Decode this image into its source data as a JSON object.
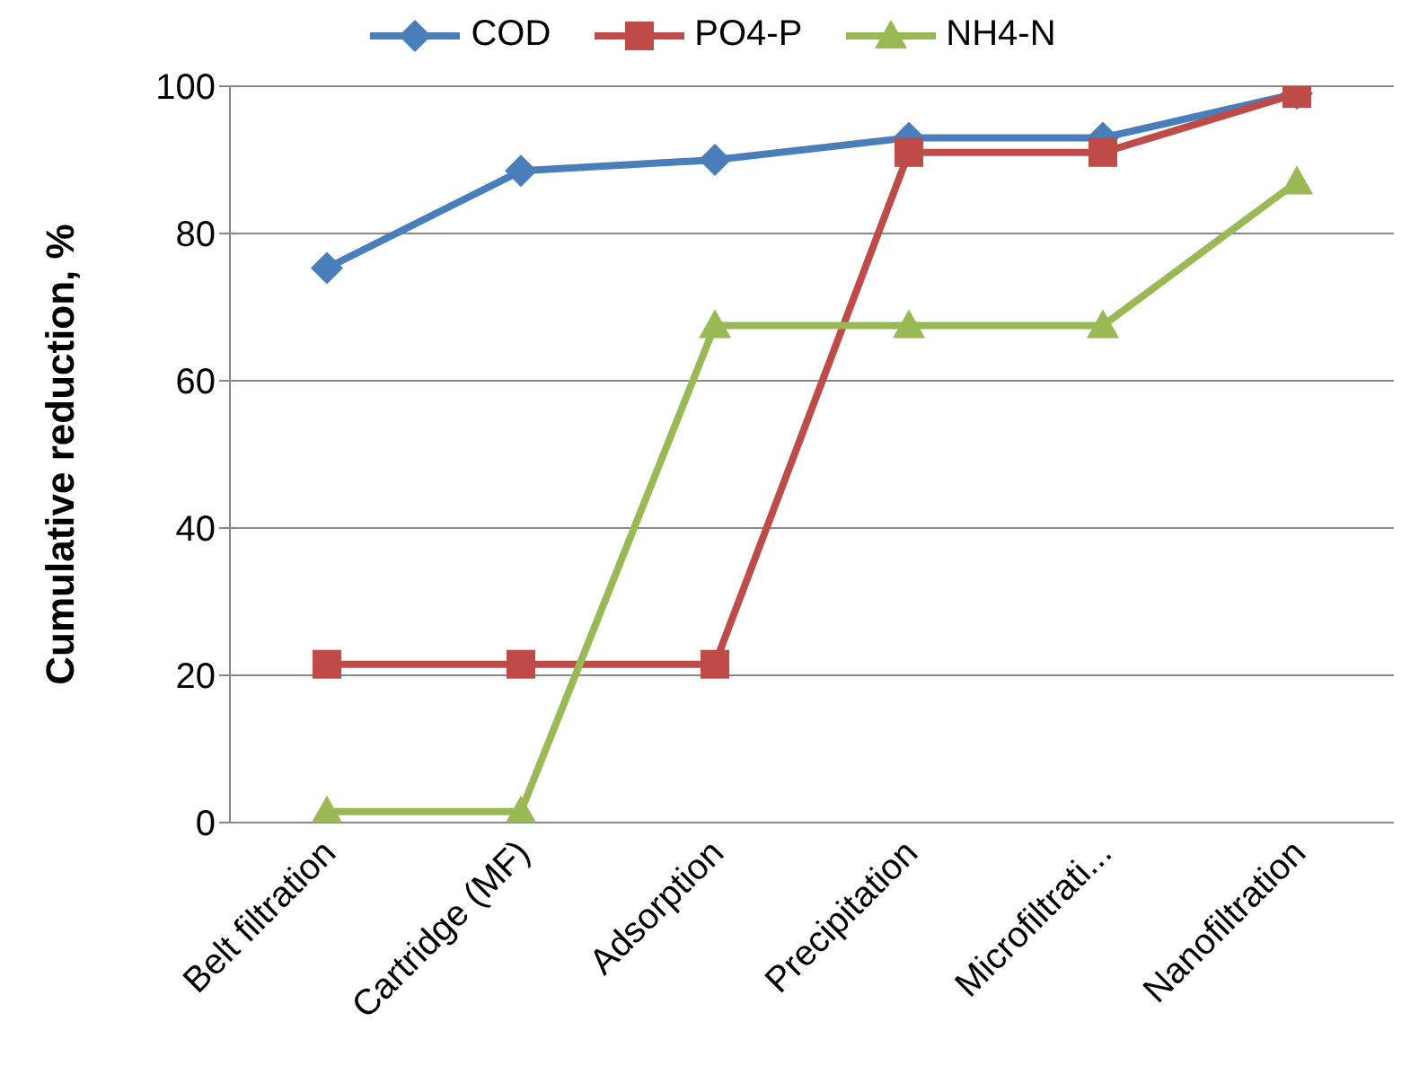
{
  "chart_data": {
    "type": "line",
    "ylabel": "Cumulative reduction, %",
    "categories": [
      "Belt filtration",
      "Cartridge (MF)",
      "Adsorption",
      "Precipitation",
      "Microfiltrati...",
      "Nanofiltration"
    ],
    "series": [
      {
        "name": "COD",
        "color": "#4a7ebb",
        "marker": "diamond",
        "values": [
          75.3,
          88.5,
          90,
          93,
          93,
          99
        ]
      },
      {
        "name": "PO4-P",
        "color": "#be4b48",
        "marker": "square",
        "values": [
          21.5,
          21.5,
          21.5,
          91,
          91,
          99
        ]
      },
      {
        "name": "NH4-N",
        "color": "#98b954",
        "marker": "triangle",
        "values": [
          1.5,
          1.5,
          67.5,
          67.5,
          67.5,
          87
        ]
      }
    ],
    "ylim": [
      0,
      100
    ],
    "yticks": [
      0,
      20,
      40,
      60,
      80,
      100
    ],
    "grid": "y",
    "legend": "top",
    "line_style": "solid"
  }
}
